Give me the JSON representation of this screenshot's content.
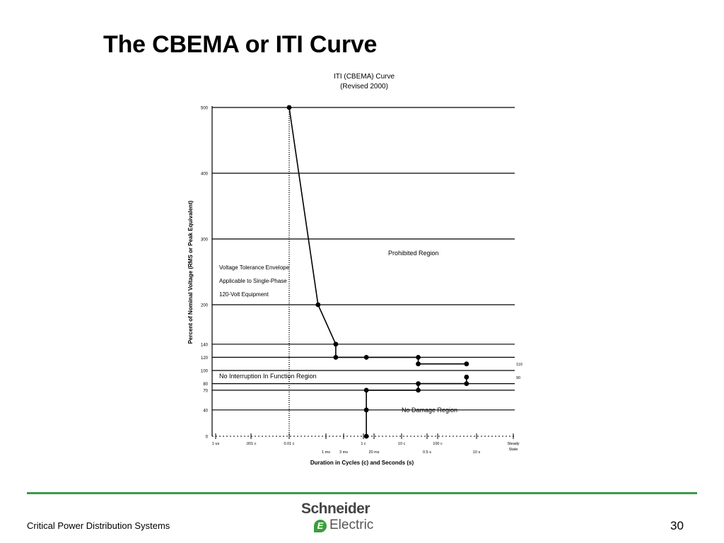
{
  "slide": {
    "title": "The CBEMA or ITI Curve",
    "footer_text": "Critical Power Distribution Systems",
    "page_number": "30",
    "logo_top": "Schneider",
    "logo_bottom": "Electric",
    "brand_color": "#3a9a4a"
  },
  "chart_data": {
    "type": "line",
    "title": "ITI (CBEMA) Curve",
    "subtitle": "(Revised 2000)",
    "xlabel": "Duration in Cycles (c) and Seconds (s)",
    "ylabel": "Percent of Nominal Voltage (RMS or Peak Equivalent)",
    "x_scale": "log",
    "x_ticks": [
      "1 us",
      ".001 c",
      "0.01 c",
      "1 ms",
      "3 ms",
      "1 c",
      "20 ms",
      "10 c",
      "0.5 s",
      "100 c",
      "10 s",
      "Steady State"
    ],
    "y_ticks": [
      0,
      40,
      70,
      80,
      100,
      120,
      140,
      200,
      300,
      400,
      500
    ],
    "ylim": [
      0,
      500
    ],
    "grid": "horizontal lines at y ticks",
    "series": [
      {
        "values": [
          [
            0.01,
            500
          ],
          [
            0.06,
            200
          ],
          [
            0.18,
            140
          ],
          [
            0.18,
            120
          ],
          [
            1.2,
            120
          ],
          [
            30,
            120
          ],
          [
            30,
            110
          ],
          [
            600,
            110
          ]
        ]
      },
      {
        "values": [
          [
            1.2,
            0
          ],
          [
            1.2,
            40
          ],
          [
            1.2,
            70
          ],
          [
            30,
            70
          ],
          [
            30,
            80
          ],
          [
            600,
            80
          ],
          [
            600,
            90
          ]
        ]
      }
    ],
    "right_labels": [
      "110",
      "90"
    ],
    "region_labels": [
      "Prohibited Region",
      "No Interruption In Function Region",
      "No Damage Region"
    ],
    "envelope_note": [
      "Voltage Tolerance Envelope",
      "Applicable to Single-Phase",
      "120-Volt Equipment"
    ]
  }
}
